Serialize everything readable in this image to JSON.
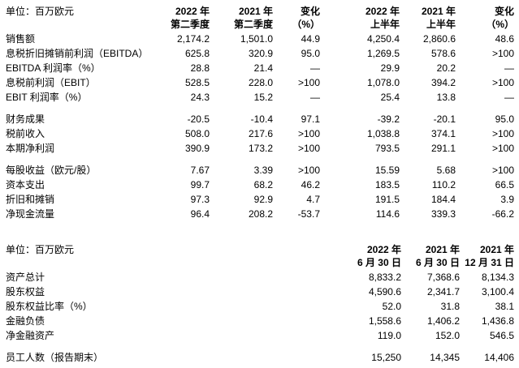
{
  "page": {
    "background": "#ffffff",
    "text_color": "#000000"
  },
  "quarter_table": {
    "unit_label": "单位：百万欧元",
    "col_headers": [
      {
        "line1": "2022 年",
        "line2": "第二季度"
      },
      {
        "line1": "2021 年",
        "line2": "第二季度"
      },
      {
        "line1": "变化",
        "line2": "（%）"
      },
      {
        "line1": "2022 年",
        "line2": "上半年"
      },
      {
        "line1": "2021 年",
        "line2": "上半年"
      },
      {
        "line1": "变化",
        "line2": "（%）"
      }
    ],
    "row_groups": [
      [
        {
          "label": "销售额",
          "values": [
            "2,174.2",
            "1,501.0",
            "44.9",
            "4,250.4",
            "2,860.6",
            "48.6"
          ]
        },
        {
          "label": "息税折旧摊销前利润（EBITDA）",
          "values": [
            "625.8",
            "320.9",
            "95.0",
            "1,269.5",
            "578.6",
            ">100"
          ]
        },
        {
          "label": "EBITDA 利润率（%）",
          "values": [
            "28.8",
            "21.4",
            "—",
            "29.9",
            "20.2",
            "—"
          ]
        },
        {
          "label": "息税前利润（EBIT）",
          "values": [
            "528.5",
            "228.0",
            ">100",
            "1,078.0",
            "394.2",
            ">100"
          ]
        },
        {
          "label": "EBIT 利润率（%）",
          "values": [
            "24.3",
            "15.2",
            "—",
            "25.4",
            "13.8",
            "—"
          ]
        }
      ],
      [
        {
          "label": "财务成果",
          "values": [
            "-20.5",
            "-10.4",
            "97.1",
            "-39.2",
            "-20.1",
            "95.0"
          ]
        },
        {
          "label": "税前收入",
          "values": [
            "508.0",
            "217.6",
            ">100",
            "1,038.8",
            "374.1",
            ">100"
          ]
        },
        {
          "label": "本期净利润",
          "values": [
            "390.9",
            "173.2",
            ">100",
            "793.5",
            "291.1",
            ">100"
          ]
        }
      ],
      [
        {
          "label": "每股收益（欧元/股）",
          "values": [
            "7.67",
            "3.39",
            ">100",
            "15.59",
            "5.68",
            ">100"
          ]
        },
        {
          "label": "资本支出",
          "values": [
            "99.7",
            "68.2",
            "46.2",
            "183.5",
            "110.2",
            "66.5"
          ]
        },
        {
          "label": "折旧和摊销",
          "values": [
            "97.3",
            "92.9",
            "4.7",
            "191.5",
            "184.4",
            "3.9"
          ]
        },
        {
          "label": "净现金流量",
          "values": [
            "96.4",
            "208.2",
            "-53.7",
            "114.6",
            "339.3",
            "-66.2"
          ]
        }
      ]
    ]
  },
  "balance_table": {
    "unit_label": "单位：百万欧元",
    "col_headers": [
      {
        "line1": "2022 年",
        "line2": "6 月 30 日"
      },
      {
        "line1": "2021 年",
        "line2": "6 月 30 日"
      },
      {
        "line1": "2021 年",
        "line2": "12 月 31 日"
      }
    ],
    "row_groups": [
      [
        {
          "label": "资产总计",
          "values": [
            "8,833.2",
            "7,368.6",
            "8,134.3"
          ]
        },
        {
          "label": "股东权益",
          "values": [
            "4,590.6",
            "2,341.7",
            "3,100.4"
          ]
        },
        {
          "label": "股东权益比率（%）",
          "values": [
            "52.0",
            "31.8",
            "38.1"
          ]
        },
        {
          "label": "金融负债",
          "values": [
            "1,558.6",
            "1,406.2",
            "1,436.8"
          ]
        },
        {
          "label": "净金融资产",
          "values": [
            "119.0",
            "152.0",
            "546.5"
          ]
        }
      ],
      [
        {
          "label": "员工人数（报告期末）",
          "values": [
            "15,250",
            "14,345",
            "14,406"
          ]
        }
      ]
    ]
  }
}
